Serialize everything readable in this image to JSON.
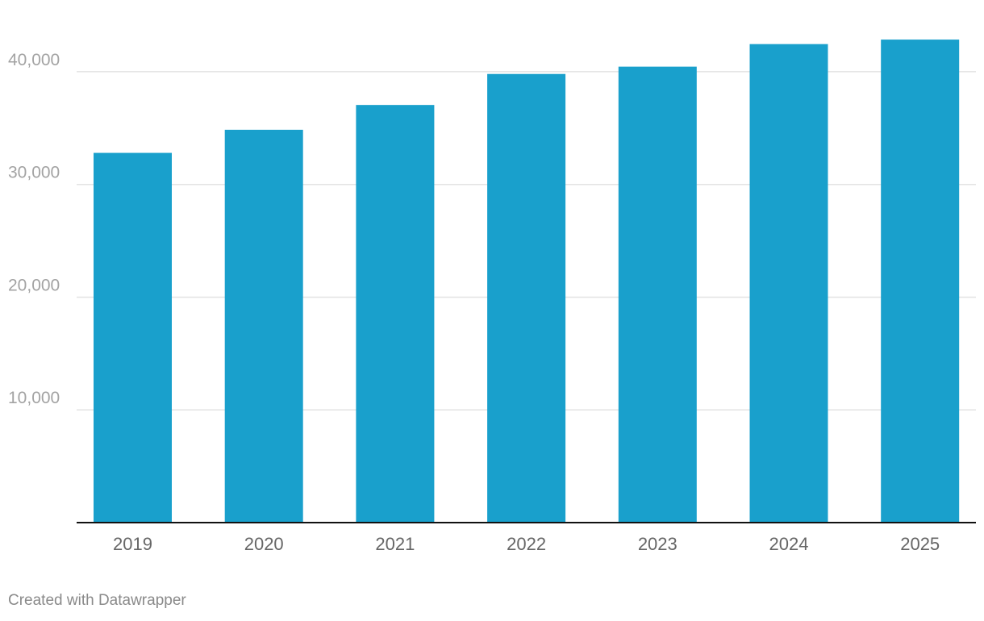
{
  "chart_data": {
    "type": "bar",
    "categories": [
      "2019",
      "2020",
      "2021",
      "2022",
      "2023",
      "2024",
      "2025"
    ],
    "values": [
      32800,
      34850,
      37050,
      39800,
      40450,
      42450,
      42850
    ],
    "title": "",
    "xlabel": "",
    "ylabel": "",
    "ylim": [
      0,
      43500
    ],
    "yticks": [
      10000,
      20000,
      30000,
      40000
    ],
    "ytick_labels": [
      "10,000",
      "20,000",
      "30,000",
      "40,000"
    ],
    "grid": true,
    "bar_color": "#19a0cc"
  },
  "footer": {
    "credit": "Created with Datawrapper"
  }
}
